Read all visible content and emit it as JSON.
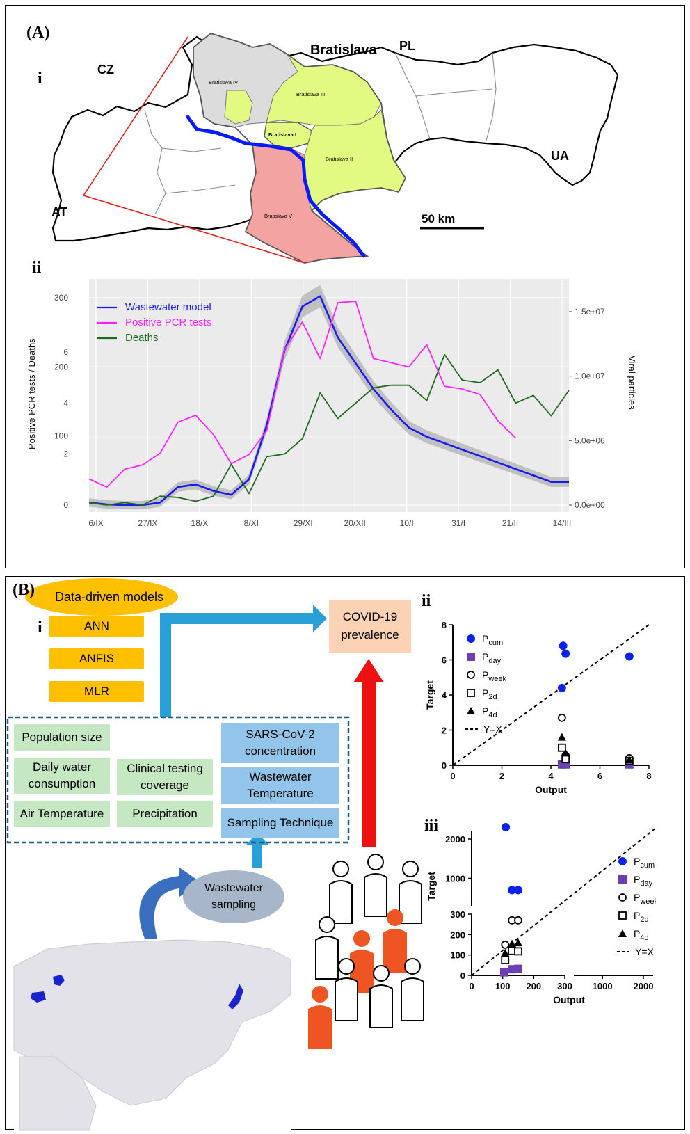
{
  "panelA": {
    "label": "(A)",
    "sub_i": "i",
    "sub_ii": "ii",
    "map": {
      "countries": {
        "cz": "CZ",
        "pl": "PL",
        "ua": "UA",
        "at": "AT"
      },
      "city": "Bratislava",
      "districts": [
        "Bratislava IV",
        "Bratislava III",
        "Bratislava I",
        "Bratislava II",
        "Bratislava V"
      ],
      "scale": "50 km",
      "colors": {
        "grey": "#dcdcdc",
        "yellow": "#e3fa82",
        "pink": "#f4a3a3",
        "river": "#0a1cff",
        "frame": "#e02020"
      }
    },
    "chart_data": {
      "type": "line",
      "left_ylabel": "Positive PCR tests / Deaths",
      "right_ylabel": "Viral particles",
      "x_ticks": [
        "6/IX",
        "27/IX",
        "18/X",
        "8/XI",
        "29/XI",
        "20/XII",
        "10/I",
        "31/I",
        "21/II",
        "14/III"
      ],
      "pcr_ticks": [
        "0",
        "100",
        "200",
        "300"
      ],
      "deaths_ticks": [
        "0",
        "2",
        "4",
        "6"
      ],
      "right_ticks": [
        "0.0e+00",
        "5.0e+06",
        "1.0e+07",
        "1.5e+07"
      ],
      "right_ylim": [
        0,
        16200000
      ],
      "pcr_ylim": [
        0,
        300
      ],
      "deaths_ylim": [
        0,
        6
      ],
      "series": [
        {
          "name": "Wastewater model",
          "color": "#1a1aee",
          "axis": "viral",
          "x": [
            "2020-09-06",
            "2020-09-13",
            "2020-09-20",
            "2020-09-27",
            "2020-10-04",
            "2020-10-11",
            "2020-10-18",
            "2020-10-25",
            "2020-11-01",
            "2020-11-08",
            "2020-11-15",
            "2020-11-22",
            "2020-11-29",
            "2020-12-06",
            "2020-12-13",
            "2020-12-20",
            "2020-12-27",
            "2021-01-03",
            "2021-01-10",
            "2021-01-17",
            "2021-01-24",
            "2021-01-31",
            "2021-02-07",
            "2021-02-14",
            "2021-02-21",
            "2021-02-28",
            "2021-03-07",
            "2021-03-14"
          ],
          "y": [
            200000,
            50000,
            0,
            0,
            200000,
            1400000,
            1600000,
            1100000,
            800000,
            2000000,
            6200000,
            12000000,
            15400000,
            16200000,
            13000000,
            11000000,
            9000000,
            7400000,
            6000000,
            5300000,
            4800000,
            4300000,
            3800000,
            3300000,
            2800000,
            2300000,
            1800000,
            1800000
          ]
        },
        {
          "name": "Positive PCR tests",
          "color": "#ff22ff",
          "axis": "pcr",
          "x": [
            "2020-09-06",
            "2020-09-13",
            "2020-09-20",
            "2020-09-27",
            "2020-10-04",
            "2020-10-11",
            "2020-10-18",
            "2020-10-25",
            "2020-11-01",
            "2020-11-08",
            "2020-11-15",
            "2020-11-22",
            "2020-11-29",
            "2020-12-06",
            "2020-12-13",
            "2020-12-20",
            "2020-12-27",
            "2021-01-03",
            "2021-01-10",
            "2021-01-17",
            "2021-01-24",
            "2021-01-31",
            "2021-02-07",
            "2021-02-14",
            "2021-02-21",
            "2021-02-28",
            "2021-03-07",
            "2021-03-14"
          ],
          "y": [
            38,
            26,
            52,
            58,
            75,
            120,
            130,
            102,
            60,
            73,
            108,
            225,
            265,
            212,
            293,
            295,
            212,
            206,
            200,
            232,
            172,
            168,
            160,
            122,
            97,
            0,
            0,
            0
          ]
        },
        {
          "name": "Deaths",
          "color": "#1c6b1c",
          "axis": "deaths",
          "x": [
            "2020-09-06",
            "2020-09-13",
            "2020-09-20",
            "2020-09-27",
            "2020-10-04",
            "2020-10-11",
            "2020-10-18",
            "2020-10-25",
            "2020-11-01",
            "2020-11-08",
            "2020-11-15",
            "2020-11-22",
            "2020-11-29",
            "2020-12-06",
            "2020-12-13",
            "2020-12-20",
            "2020-12-27",
            "2021-01-03",
            "2021-01-10",
            "2021-01-17",
            "2021-01-24",
            "2021-01-31",
            "2021-02-07",
            "2021-02-14",
            "2021-02-21",
            "2021-02-28",
            "2021-03-07",
            "2021-03-14"
          ],
          "y": [
            0.1,
            0.0,
            0.1,
            0.0,
            0.35,
            0.3,
            0.15,
            0.35,
            1.6,
            0.45,
            1.9,
            2.0,
            2.6,
            4.4,
            3.4,
            4.0,
            4.6,
            4.7,
            4.7,
            4.1,
            5.9,
            4.9,
            4.8,
            5.3,
            4.0,
            4.3,
            3.5,
            4.5
          ]
        }
      ]
    }
  },
  "panelB": {
    "label": "(B)",
    "sub_i": "i",
    "sub_ii": "ii",
    "sub_iii": "iii",
    "header": "Data-driven models",
    "models": [
      "ANN",
      "ANFIS",
      "MLR"
    ],
    "output": "COVID-19\nprevalence",
    "green_boxes": {
      "population": "Population size",
      "water": "Daily water\nconsumption",
      "clinical": "Clinical testing\ncoverage",
      "air": "Air Temperature",
      "precip": "Precipitation"
    },
    "blue_boxes": {
      "sars": "SARS-CoV-2\nconcentration",
      "wwtemp": "Wastewater\nTemperature",
      "sampling": "Sampling Technique"
    },
    "ww_sampling": "Wastewater\nsampling",
    "colors": {
      "models": "#fec000",
      "output": "#fbd2b4",
      "green": "#c5e7c2",
      "blue": "#93c5ea",
      "arrow_blue": "#2aa0d8",
      "arrow_red": "#ee1111"
    },
    "chart_data": [
      {
        "type": "scatter",
        "xlabel": "Output",
        "ylabel": "Target",
        "xlim": [
          0,
          8
        ],
        "ylim": [
          0,
          8
        ],
        "x_ticks": [
          "0",
          "2",
          "4",
          "6",
          "8"
        ],
        "y_ticks": [
          "0",
          "2",
          "4",
          "6",
          "8"
        ],
        "legend": [
          "P_cum",
          "P_day",
          "P_week",
          "P_2d",
          "P_4d",
          "Y=X"
        ],
        "legend_sub": [
          "cum",
          "day",
          "week",
          "2d",
          "4d"
        ],
        "legend_main": "P",
        "series": [
          {
            "name": "Pcum",
            "marker": "filled-circle",
            "color": "#0a22ee",
            "x": [
              4.5,
              4.6,
              4.45,
              7.2
            ],
            "y": [
              6.8,
              6.35,
              4.4,
              6.2
            ]
          },
          {
            "name": "Pday",
            "marker": "filled-square",
            "color": "#6a3fb0",
            "x": [
              4.45,
              4.6,
              7.2
            ],
            "y": [
              0.05,
              0.05,
              0.05
            ]
          },
          {
            "name": "Pweek",
            "marker": "open-circle",
            "color": "#000000",
            "x": [
              4.45,
              4.6,
              7.2
            ],
            "y": [
              2.7,
              0.55,
              0.4
            ]
          },
          {
            "name": "P2d",
            "marker": "open-square",
            "color": "#000000",
            "x": [
              4.45,
              4.6,
              7.2
            ],
            "y": [
              1.0,
              0.35,
              0.25
            ]
          },
          {
            "name": "P4d",
            "marker": "filled-triangle",
            "color": "#000000",
            "x": [
              4.45,
              4.6,
              7.2
            ],
            "y": [
              1.6,
              0.7,
              0.3
            ]
          }
        ],
        "reference": "Y=X"
      },
      {
        "type": "scatter",
        "xlabel": "Output",
        "ylabel": "Target",
        "x_ticks": [
          "0",
          "100",
          "200",
          "300",
          "1000",
          "2000"
        ],
        "y_ticks": [
          "0",
          "100",
          "200",
          "300",
          "1000",
          "2000"
        ],
        "legend": [
          "P_cum",
          "P_day",
          "P_week",
          "P_2d",
          "P_4d",
          "Y=X"
        ],
        "legend_sub": [
          "cum",
          "day",
          "week",
          "2d",
          "4d"
        ],
        "legend_main": "P",
        "series": [
          {
            "name": "Pcum",
            "marker": "filled-circle",
            "color": "#0a22ee",
            "x": [
              110,
              130,
              150
            ],
            "y": [
              2300,
              700,
              700
            ]
          },
          {
            "name": "Pday",
            "marker": "filled-square",
            "color": "#6a3fb0",
            "x": [
              105,
              130,
              150
            ],
            "y": [
              15,
              30,
              32
            ]
          },
          {
            "name": "Pweek",
            "marker": "open-circle",
            "color": "#000000",
            "x": [
              108,
              130,
              150
            ],
            "y": [
              150,
              270,
              270
            ]
          },
          {
            "name": "P2d",
            "marker": "open-square",
            "color": "#000000",
            "x": [
              108,
              130,
              150
            ],
            "y": [
              75,
              120,
              118
            ]
          },
          {
            "name": "P4d",
            "marker": "filled-triangle",
            "color": "#000000",
            "x": [
              108,
              130,
              150
            ],
            "y": [
              110,
              155,
              160
            ]
          }
        ],
        "reference": "Y=X"
      }
    ]
  }
}
